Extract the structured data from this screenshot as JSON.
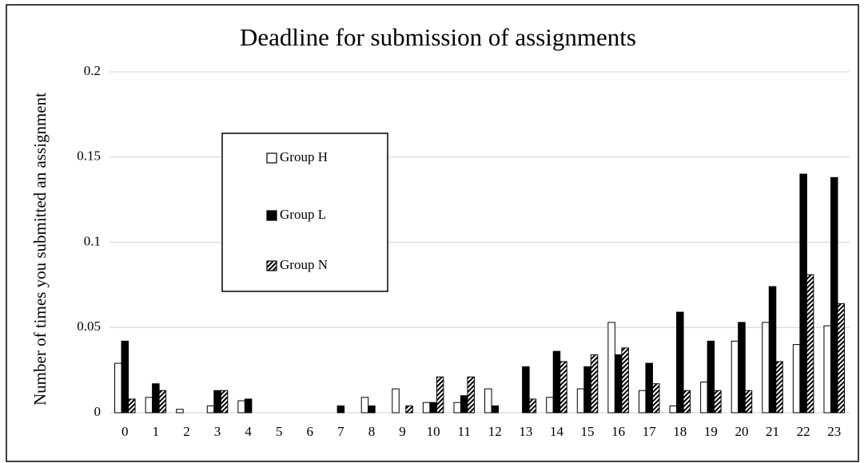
{
  "chart_data": {
    "type": "bar",
    "title": "Deadline for submission of assignments",
    "ylabel": "Number of times you submitted an assignment",
    "categories": [
      "0",
      "1",
      "2",
      "3",
      "4",
      "5",
      "6",
      "7",
      "8",
      "9",
      "10",
      "11",
      "12",
      "13",
      "14",
      "15",
      "16",
      "17",
      "18",
      "19",
      "20",
      "21",
      "22",
      "23"
    ],
    "series": [
      {
        "name": "Group H",
        "color": "#ffffff",
        "hatch": false,
        "values": [
          0.029,
          0.009,
          0.002,
          0.004,
          0.007,
          0,
          0,
          0,
          0.009,
          0.014,
          0.006,
          0.006,
          0.014,
          0,
          0.009,
          0.014,
          0.053,
          0.013,
          0.004,
          0.018,
          0.042,
          0.053,
          0.04,
          0.051
        ]
      },
      {
        "name": "Group L",
        "color": "#000000",
        "hatch": false,
        "values": [
          0.042,
          0.017,
          0,
          0.013,
          0.008,
          0,
          0,
          0.004,
          0.004,
          0,
          0.006,
          0.01,
          0.004,
          0.027,
          0.036,
          0.027,
          0.034,
          0.029,
          0.059,
          0.042,
          0.053,
          0.074,
          0.14,
          0.138
        ]
      },
      {
        "name": "Group N",
        "color": "#000000",
        "hatch": true,
        "values": [
          0.008,
          0.013,
          0,
          0.013,
          0,
          0,
          0,
          0,
          0,
          0.004,
          0.021,
          0.021,
          0,
          0.008,
          0.03,
          0.034,
          0.038,
          0.017,
          0.013,
          0.013,
          0.013,
          0.03,
          0.081,
          0.064
        ]
      }
    ],
    "ylim": [
      0,
      0.2
    ],
    "yticks": [
      0,
      0.05,
      0.1,
      0.15,
      0.2
    ],
    "grid": true
  }
}
